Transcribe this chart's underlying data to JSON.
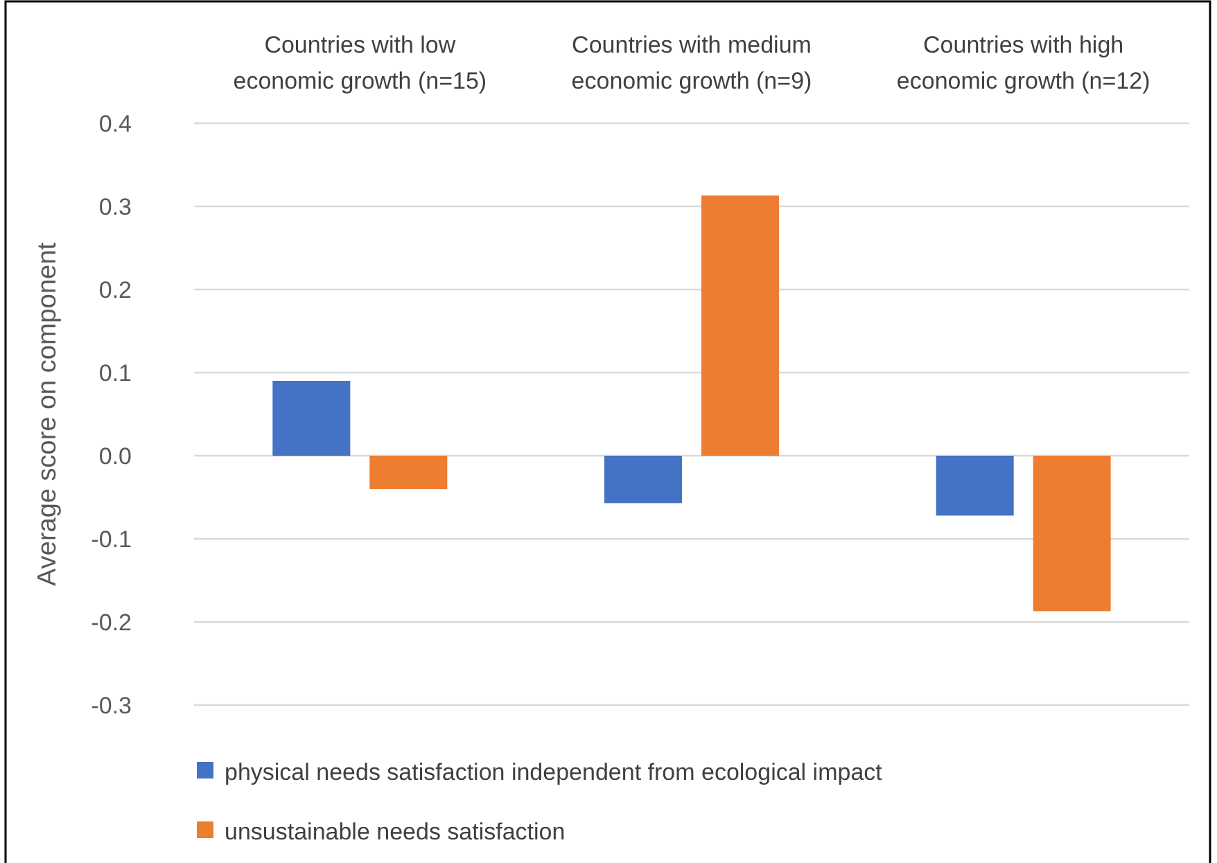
{
  "chart_data": {
    "type": "bar",
    "ylabel": "Average score on component",
    "categories": [
      "Countries with low economic growth (n=15)",
      "Countries with medium economic growth (n=9)",
      "Countries with high economic growth (n=12)"
    ],
    "series": [
      {
        "name": "physical needs satisfaction independent from ecological impact",
        "color": "#4472c4",
        "values": [
          0.09,
          -0.057,
          -0.072
        ]
      },
      {
        "name": "unsustainable needs satisfaction",
        "color": "#ed7d31",
        "values": [
          -0.04,
          0.313,
          -0.187
        ]
      }
    ],
    "ylim": [
      -0.3,
      0.4
    ],
    "yticks": [
      {
        "value": -0.3,
        "label": "-0.3"
      },
      {
        "value": -0.2,
        "label": "-0.2"
      },
      {
        "value": -0.1,
        "label": "-0.1"
      },
      {
        "value": 0,
        "label": "0.0"
      },
      {
        "value": 0.1,
        "label": "0.1"
      },
      {
        "value": 0.2,
        "label": "0.2"
      },
      {
        "value": 0.3,
        "label": "0.3"
      },
      {
        "value": 0.4,
        "label": "0.4"
      }
    ],
    "grid": "y",
    "legend": "bottom"
  }
}
